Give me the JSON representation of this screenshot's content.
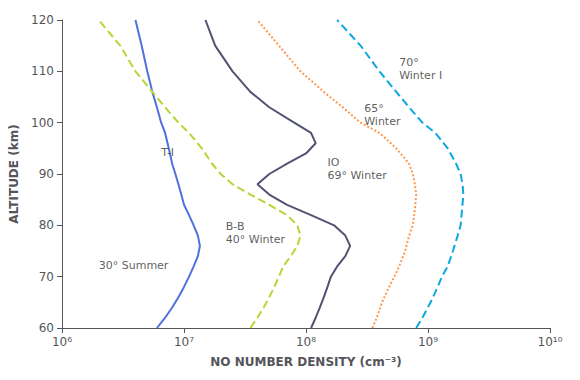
{
  "chart_data": {
    "type": "line",
    "xlabel": "NO NUMBER DENSITY (cm⁻³)",
    "ylabel": "ALTITUDE (km)",
    "log": "x",
    "grid": false,
    "xlim": [
      1000000.0,
      10000000000.0
    ],
    "xticks": [
      {
        "value": 1000000.0,
        "label": "10⁶"
      },
      {
        "value": 10000000.0,
        "label": "10⁷"
      },
      {
        "value": 100000000.0,
        "label": "10⁸"
      },
      {
        "value": 1000000000.0,
        "label": "10⁹"
      },
      {
        "value": 10000000000.0,
        "label": "10¹⁰"
      }
    ],
    "ylim": [
      60,
      120
    ],
    "yticks": [
      60,
      70,
      80,
      90,
      100,
      110,
      120
    ],
    "series": [
      {
        "line_style": "solid",
        "x": [
          6000000.0,
          7000000.0,
          8000000.0,
          9000000.0,
          10000000.0,
          11000000.0,
          12000000.0,
          13000000.0,
          13500000.0,
          13000000.0,
          12000000.0,
          11000000.0,
          10000000.0,
          9500000.0,
          9000000.0,
          8500000.0,
          8000000.0,
          7500000.0,
          7000000.0,
          6500000.0,
          6000000.0,
          5500000.0,
          5000000.0,
          4500000.0,
          4000000.0
        ],
        "values": [
          60,
          62,
          64,
          66,
          68,
          70,
          72,
          74,
          76,
          78,
          80,
          82,
          84,
          86,
          88,
          90,
          92,
          95,
          98,
          100,
          103,
          106,
          110,
          115,
          120
        ]
      },
      {
        "line_style": "dashed",
        "x": [
          35000000.0,
          40000000.0,
          45000000.0,
          50000000.0,
          55000000.0,
          60000000.0,
          65000000.0,
          75000000.0,
          85000000.0,
          90000000.0,
          85000000.0,
          70000000.0,
          50000000.0,
          35000000.0,
          25000000.0,
          20000000.0,
          17000000.0,
          14000000.0,
          11000000.0,
          9000000.0,
          7000000.0,
          5500000.0,
          4000000.0,
          3000000.0,
          2000000.0
        ],
        "values": [
          60,
          62,
          64,
          66,
          68,
          70,
          72,
          74,
          76,
          78,
          80,
          82,
          84,
          86,
          88,
          90,
          92,
          95,
          98,
          100,
          103,
          106,
          110,
          115,
          120
        ]
      },
      {
        "line_style": "solid",
        "x": [
          110000000.0,
          120000000.0,
          130000000.0,
          140000000.0,
          150000000.0,
          160000000.0,
          180000000.0,
          210000000.0,
          230000000.0,
          210000000.0,
          170000000.0,
          110000000.0,
          70000000.0,
          50000000.0,
          40000000.0,
          50000000.0,
          70000000.0,
          100000000.0,
          120000000.0,
          110000000.0,
          80000000.0,
          50000000.0,
          35000000.0,
          25000000.0,
          18000000.0,
          15000000.0
        ],
        "values": [
          60,
          62,
          64,
          66,
          68,
          70,
          72,
          74,
          76,
          78,
          80,
          82,
          84,
          86,
          88,
          90,
          92,
          94,
          96,
          98,
          100,
          103,
          106,
          110,
          115,
          120
        ]
      },
      {
        "line_style": "dotted",
        "x": [
          350000000.0,
          380000000.0,
          420000000.0,
          480000000.0,
          530000000.0,
          580000000.0,
          650000000.0,
          700000000.0,
          750000000.0,
          780000000.0,
          800000000.0,
          780000000.0,
          750000000.0,
          700000000.0,
          550000000.0,
          400000000.0,
          280000000.0,
          200000000.0,
          140000000.0,
          90000000.0,
          60000000.0,
          40000000.0
        ],
        "values": [
          60,
          62,
          65,
          68,
          70,
          72,
          75,
          78,
          80,
          83,
          86,
          88,
          90,
          92,
          95,
          98,
          100,
          103,
          106,
          110,
          115,
          120
        ]
      },
      {
        "line_style": "dashed",
        "x": [
          800000000.0,
          900000000.0,
          1050000000.0,
          1200000000.0,
          1300000000.0,
          1450000000.0,
          1600000000.0,
          1750000000.0,
          1850000000.0,
          1900000000.0,
          1950000000.0,
          1920000000.0,
          1850000000.0,
          1700000000.0,
          1450000000.0,
          1150000000.0,
          900000000.0,
          700000000.0,
          550000000.0,
          400000000.0,
          280000000.0,
          180000000.0
        ],
        "values": [
          60,
          62,
          65,
          68,
          70,
          72,
          75,
          78,
          80,
          83,
          86,
          88,
          90,
          92,
          95,
          98,
          100,
          103,
          106,
          110,
          115,
          120
        ]
      }
    ],
    "annotations": [
      {
        "text": "T-I",
        "x": 6500000.0,
        "y": 93
      },
      {
        "text": "30° Summer",
        "x": 2000000.0,
        "y": 71
      },
      {
        "text": "B-B\n40° Winter",
        "x": 22000000.0,
        "y": 76
      },
      {
        "text": "IO\n69° Winter",
        "x": 150000000.0,
        "y": 88.5
      },
      {
        "text": "65°\nWinter",
        "x": 300000000.0,
        "y": 99
      },
      {
        "text": "70°\nWinter I",
        "x": 580000000.0,
        "y": 108
      }
    ]
  }
}
